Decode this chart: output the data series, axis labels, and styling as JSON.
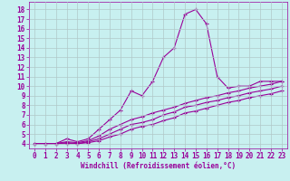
{
  "xlabel": "Windchill (Refroidissement éolien,°C)",
  "bg_color": "#c8f0f0",
  "line_color": "#990099",
  "grid_color": "#b0c8c8",
  "xlim": [
    -0.5,
    23.5
  ],
  "ylim": [
    3.5,
    18.8
  ],
  "xticks": [
    0,
    1,
    2,
    3,
    4,
    5,
    6,
    7,
    8,
    9,
    10,
    11,
    12,
    13,
    14,
    15,
    16,
    17,
    18,
    19,
    20,
    21,
    22,
    23
  ],
  "yticks": [
    4,
    5,
    6,
    7,
    8,
    9,
    10,
    11,
    12,
    13,
    14,
    15,
    16,
    17,
    18
  ],
  "curve1_x": [
    0,
    1,
    2,
    3,
    4,
    5,
    6,
    7,
    8,
    9,
    10,
    11,
    12,
    13,
    14,
    15,
    16,
    17,
    18,
    19,
    20,
    21,
    22,
    23
  ],
  "curve1_y": [
    4.0,
    4.0,
    4.0,
    4.5,
    4.2,
    4.5,
    5.5,
    6.5,
    7.5,
    9.5,
    9.0,
    10.5,
    13.0,
    14.0,
    17.5,
    18.0,
    16.5,
    11.0,
    9.8,
    10.0,
    10.0,
    10.5,
    10.5,
    10.5
  ],
  "curve2_x": [
    0,
    1,
    2,
    3,
    4,
    5,
    6,
    7,
    8,
    9,
    10,
    11,
    12,
    13,
    14,
    15,
    16,
    17,
    18,
    19,
    20,
    21,
    22,
    23
  ],
  "curve2_y": [
    4.0,
    4.0,
    4.0,
    4.2,
    4.1,
    4.3,
    4.8,
    5.5,
    6.0,
    6.5,
    6.8,
    7.2,
    7.5,
    7.8,
    8.2,
    8.5,
    8.8,
    9.0,
    9.3,
    9.5,
    9.8,
    10.0,
    10.2,
    10.5
  ],
  "curve3_x": [
    0,
    1,
    2,
    3,
    4,
    5,
    6,
    7,
    8,
    9,
    10,
    11,
    12,
    13,
    14,
    15,
    16,
    17,
    18,
    19,
    20,
    21,
    22,
    23
  ],
  "curve3_y": [
    4.0,
    4.0,
    4.0,
    4.1,
    4.0,
    4.2,
    4.5,
    5.0,
    5.5,
    6.0,
    6.2,
    6.5,
    7.0,
    7.3,
    7.8,
    8.0,
    8.3,
    8.5,
    8.8,
    9.0,
    9.3,
    9.5,
    9.7,
    10.0
  ],
  "curve4_x": [
    0,
    1,
    2,
    3,
    4,
    5,
    6,
    7,
    8,
    9,
    10,
    11,
    12,
    13,
    14,
    15,
    16,
    17,
    18,
    19,
    20,
    21,
    22,
    23
  ],
  "curve4_y": [
    4.0,
    4.0,
    4.0,
    4.0,
    4.0,
    4.1,
    4.3,
    4.7,
    5.0,
    5.5,
    5.8,
    6.0,
    6.4,
    6.7,
    7.2,
    7.4,
    7.7,
    8.0,
    8.3,
    8.5,
    8.8,
    9.0,
    9.2,
    9.5
  ],
  "tick_fontsize": 5.5,
  "xlabel_fontsize": 5.5,
  "marker_size": 3.5,
  "line_width": 0.8
}
